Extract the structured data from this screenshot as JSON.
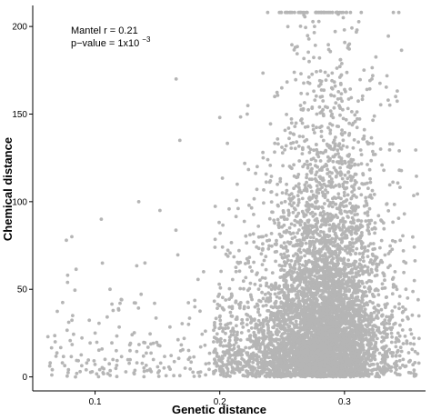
{
  "chart_data": {
    "type": "scatter",
    "xlabel": "Genetic distance",
    "ylabel": "Chemical distance",
    "xlim": [
      0.05,
      0.365
    ],
    "ylim": [
      -8,
      212
    ],
    "x_ticks": [
      0.1,
      0.2,
      0.3
    ],
    "x_tick_labels": [
      "0.1",
      "0.2",
      "0.3"
    ],
    "y_ticks": [
      0,
      50,
      100,
      150,
      200
    ],
    "y_tick_labels": [
      "0",
      "50",
      "100",
      "150",
      "200"
    ],
    "grid": false,
    "point_color": "#b5b5b5",
    "annotation": {
      "line1": "Mantel r = 0.21",
      "line2_prefix": "p−value = 1x10",
      "line2_exponent": "−3"
    },
    "sample_points": [
      [
        0.064,
        8
      ],
      [
        0.068,
        20
      ],
      [
        0.077,
        78
      ],
      [
        0.078,
        58
      ],
      [
        0.082,
        35
      ],
      [
        0.088,
        3
      ],
      [
        0.1,
        25
      ],
      [
        0.105,
        90
      ],
      [
        0.108,
        10
      ],
      [
        0.112,
        50
      ],
      [
        0.12,
        42
      ],
      [
        0.128,
        15
      ],
      [
        0.135,
        100
      ],
      [
        0.14,
        65
      ],
      [
        0.145,
        3
      ],
      [
        0.152,
        95
      ],
      [
        0.165,
        170
      ],
      [
        0.168,
        135
      ],
      [
        0.175,
        30
      ],
      [
        0.18,
        40
      ],
      [
        0.187,
        60
      ],
      [
        0.195,
        20
      ],
      [
        0.2,
        148
      ],
      [
        0.205,
        70
      ],
      [
        0.214,
        110
      ],
      [
        0.222,
        150
      ],
      [
        0.23,
        120
      ],
      [
        0.244,
        160
      ],
      [
        0.254,
        90
      ],
      [
        0.262,
        70
      ],
      [
        0.27,
        123
      ],
      [
        0.276,
        200
      ],
      [
        0.28,
        182
      ],
      [
        0.287,
        172
      ],
      [
        0.29,
        150
      ],
      [
        0.295,
        207
      ],
      [
        0.299,
        205
      ],
      [
        0.304,
        190
      ],
      [
        0.31,
        198
      ],
      [
        0.315,
        110
      ],
      [
        0.322,
        170
      ],
      [
        0.329,
        130
      ],
      [
        0.335,
        158
      ],
      [
        0.341,
        160
      ],
      [
        0.344,
        118
      ],
      [
        0.348,
        93
      ],
      [
        0.356,
        55
      ],
      [
        0.343,
        25
      ]
    ]
  }
}
